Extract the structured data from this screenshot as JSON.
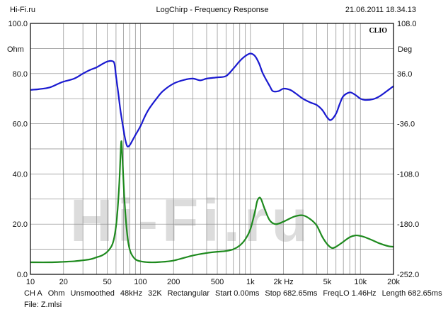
{
  "header": {
    "left": "Hi-Fi.ru",
    "center": "LogChirp - Frequency Response",
    "right": "21.06.2011 18.34.13"
  },
  "brand": "CLIO",
  "footer": {
    "line1": [
      "CH A",
      "Ohm",
      "Unsmoothed",
      "48kHz",
      "32K",
      "Rectangular",
      "Start 0.00ms",
      "Stop 682.65ms",
      "FreqLO 1.46Hz",
      "Length 682.65ms"
    ],
    "line2": "File: Z.mlsi"
  },
  "watermark": "Hi-Fi.ru",
  "colors": {
    "magnitude": "#1a1ad0",
    "phase": "#1e8a1e",
    "grid": "#888888",
    "watermark": "#dcdcdc"
  },
  "chart_data": {
    "type": "line",
    "x_scale": "log",
    "xlim": [
      10,
      20000
    ],
    "ylim": [
      0,
      100
    ],
    "y2lim": [
      -252,
      108
    ],
    "grid": true,
    "left_unit": "Ohm",
    "right_unit": "Deg",
    "x_ticks": [
      10,
      20,
      50,
      100,
      200,
      500,
      1000,
      2000,
      5000,
      10000,
      20000
    ],
    "x_tick_labels": [
      "10",
      "20",
      "50",
      "100",
      "200",
      "500",
      "1k",
      "2k Hz",
      "5k",
      "10k",
      "20k"
    ],
    "y_ticks": [
      0,
      20,
      40,
      60,
      80,
      100
    ],
    "y_tick_labels": [
      "0.0",
      "20.0",
      "40.0",
      "60.0",
      "80.0",
      "100.0"
    ],
    "y2_ticks": [
      -252,
      -180,
      -108,
      -36,
      36,
      108
    ],
    "y2_tick_labels": [
      "-252.0",
      "-180.0",
      "-108.0",
      "-36.0",
      "36.0",
      "108.0"
    ],
    "series": [
      {
        "axis": "left",
        "color": "#1a1ad0",
        "points": [
          [
            10,
            73.5
          ],
          [
            12,
            73.8
          ],
          [
            15,
            74.5
          ],
          [
            18,
            76.0
          ],
          [
            20,
            76.8
          ],
          [
            25,
            78.0
          ],
          [
            30,
            80.0
          ],
          [
            35,
            81.5
          ],
          [
            40,
            82.5
          ],
          [
            45,
            83.8
          ],
          [
            50,
            84.8
          ],
          [
            55,
            85.0
          ],
          [
            58,
            84.0
          ],
          [
            60,
            79.0
          ],
          [
            63,
            72.0
          ],
          [
            66,
            65.0
          ],
          [
            70,
            58.0
          ],
          [
            73,
            53.5
          ],
          [
            76,
            51.0
          ],
          [
            80,
            51.5
          ],
          [
            85,
            53.5
          ],
          [
            90,
            55.5
          ],
          [
            100,
            59.0
          ],
          [
            110,
            63.0
          ],
          [
            120,
            66.0
          ],
          [
            140,
            70.0
          ],
          [
            160,
            73.0
          ],
          [
            200,
            76.0
          ],
          [
            250,
            77.5
          ],
          [
            300,
            78.0
          ],
          [
            350,
            77.3
          ],
          [
            400,
            78.0
          ],
          [
            500,
            78.5
          ],
          [
            600,
            79.0
          ],
          [
            700,
            82.0
          ],
          [
            800,
            85.0
          ],
          [
            900,
            87.0
          ],
          [
            1000,
            88.0
          ],
          [
            1100,
            87.0
          ],
          [
            1200,
            84.0
          ],
          [
            1300,
            80.0
          ],
          [
            1500,
            75.0
          ],
          [
            1600,
            73.0
          ],
          [
            1800,
            73.0
          ],
          [
            2000,
            74.0
          ],
          [
            2300,
            73.5
          ],
          [
            2600,
            72.0
          ],
          [
            3000,
            70.0
          ],
          [
            3500,
            68.5
          ],
          [
            4000,
            67.5
          ],
          [
            4500,
            65.5
          ],
          [
            5000,
            62.5
          ],
          [
            5400,
            61.5
          ],
          [
            6000,
            64.0
          ],
          [
            6500,
            68.0
          ],
          [
            7000,
            71.0
          ],
          [
            8000,
            72.5
          ],
          [
            9000,
            71.5
          ],
          [
            10000,
            70.0
          ],
          [
            11000,
            69.5
          ],
          [
            13000,
            69.8
          ],
          [
            15000,
            71.0
          ],
          [
            18000,
            73.5
          ],
          [
            20000,
            75.0
          ]
        ]
      },
      {
        "axis": "left",
        "color": "#1e8a1e",
        "points": [
          [
            10,
            4.8
          ],
          [
            15,
            4.8
          ],
          [
            20,
            5.0
          ],
          [
            25,
            5.2
          ],
          [
            30,
            5.6
          ],
          [
            35,
            6.0
          ],
          [
            40,
            6.8
          ],
          [
            45,
            7.6
          ],
          [
            50,
            9.0
          ],
          [
            55,
            11.5
          ],
          [
            58,
            15.0
          ],
          [
            61,
            22.0
          ],
          [
            64,
            35.0
          ],
          [
            66,
            48.0
          ],
          [
            67,
            53.0
          ],
          [
            68,
            50.0
          ],
          [
            70,
            38.0
          ],
          [
            72,
            28.0
          ],
          [
            75,
            18.0
          ],
          [
            78,
            12.0
          ],
          [
            82,
            8.5
          ],
          [
            90,
            6.0
          ],
          [
            100,
            5.2
          ],
          [
            120,
            4.8
          ],
          [
            150,
            4.9
          ],
          [
            200,
            5.5
          ],
          [
            300,
            7.5
          ],
          [
            400,
            8.5
          ],
          [
            500,
            9.0
          ],
          [
            600,
            9.3
          ],
          [
            700,
            10.0
          ],
          [
            800,
            11.5
          ],
          [
            900,
            14.0
          ],
          [
            1000,
            18.0
          ],
          [
            1100,
            25.0
          ],
          [
            1150,
            29.0
          ],
          [
            1200,
            30.5
          ],
          [
            1250,
            30.0
          ],
          [
            1350,
            26.0
          ],
          [
            1500,
            21.5
          ],
          [
            1700,
            20.0
          ],
          [
            2000,
            21.0
          ],
          [
            2500,
            23.0
          ],
          [
            3000,
            23.5
          ],
          [
            3500,
            22.0
          ],
          [
            4000,
            19.5
          ],
          [
            4500,
            15.0
          ],
          [
            5000,
            12.0
          ],
          [
            5500,
            10.5
          ],
          [
            6000,
            11.0
          ],
          [
            7000,
            13.0
          ],
          [
            8000,
            14.8
          ],
          [
            9000,
            15.5
          ],
          [
            10000,
            15.3
          ],
          [
            11000,
            14.8
          ],
          [
            13000,
            13.5
          ],
          [
            15000,
            12.3
          ],
          [
            18000,
            11.2
          ],
          [
            20000,
            11.0
          ]
        ]
      }
    ]
  }
}
